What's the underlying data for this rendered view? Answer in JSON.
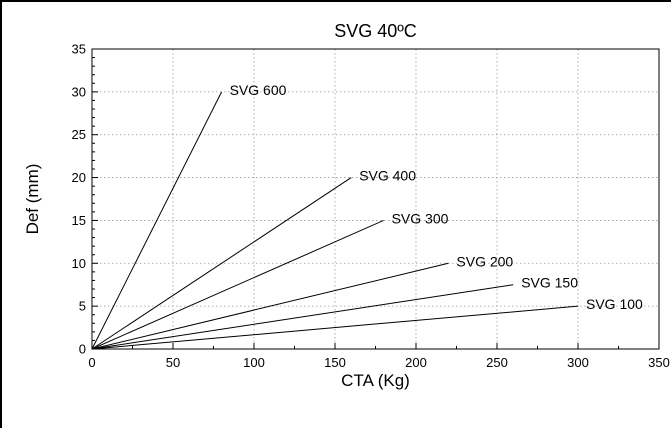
{
  "chart_data": {
    "type": "line",
    "title": "SVG 40ºC",
    "xlabel": "CTA (Kg)",
    "ylabel": "Def (mm)",
    "xlim": [
      0,
      350
    ],
    "ylim": [
      0,
      35
    ],
    "xticks": [
      0,
      50,
      100,
      150,
      200,
      250,
      300,
      350
    ],
    "yticks": [
      0,
      5,
      10,
      15,
      20,
      25,
      30,
      35
    ],
    "grid": true,
    "legend": "none",
    "series": [
      {
        "name": "SVG 600",
        "x": [
          0,
          80
        ],
        "y": [
          0,
          30
        ]
      },
      {
        "name": "SVG 400",
        "x": [
          0,
          160
        ],
        "y": [
          0,
          20
        ]
      },
      {
        "name": "SVG 300",
        "x": [
          0,
          180
        ],
        "y": [
          0,
          15
        ]
      },
      {
        "name": "SVG 200",
        "x": [
          0,
          220
        ],
        "y": [
          0,
          10
        ]
      },
      {
        "name": "SVG 150",
        "x": [
          0,
          260
        ],
        "y": [
          0,
          7.5
        ]
      },
      {
        "name": "SVG 100",
        "x": [
          0,
          300
        ],
        "y": [
          0,
          5
        ]
      }
    ]
  }
}
